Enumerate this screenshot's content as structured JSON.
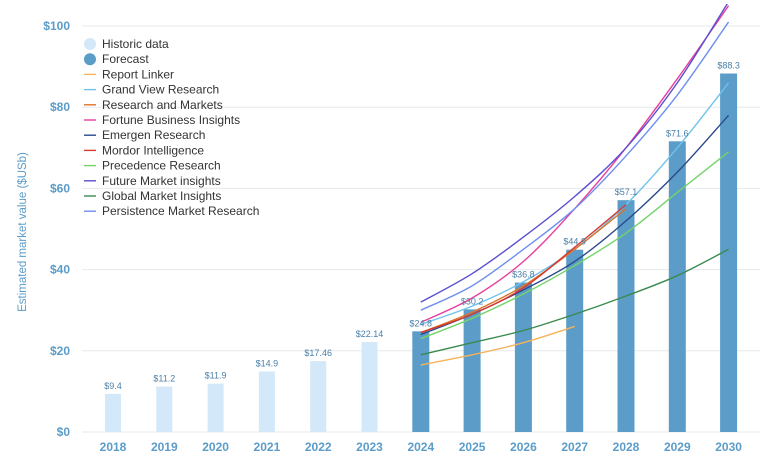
{
  "chart_data": {
    "type": "bar",
    "title": "",
    "xlabel": "",
    "ylabel": "Estimated market value ($USb)",
    "ylim": [
      0,
      100
    ],
    "yticks": [
      0,
      20,
      40,
      60,
      80,
      100
    ],
    "ytick_labels": [
      "$0",
      "$20",
      "$40",
      "$60",
      "$80",
      "$100"
    ],
    "categories": [
      "2018",
      "2019",
      "2020",
      "2021",
      "2022",
      "2023",
      "2024",
      "2025",
      "2026",
      "2027",
      "2028",
      "2029",
      "2030"
    ],
    "bars": {
      "values": [
        9.4,
        11.2,
        11.9,
        14.9,
        17.46,
        22.14,
        24.8,
        30.2,
        36.8,
        44.9,
        57.1,
        71.6,
        88.3
      ],
      "labels": [
        "$9.4",
        "$11.2",
        "$11.9",
        "$14.9",
        "$17.46",
        "$22.14",
        "$24.8",
        "$30.2",
        "$36.8",
        "$44.9",
        "$57.1",
        "$71.6",
        "$88.3"
      ],
      "kind": [
        "historic",
        "historic",
        "historic",
        "historic",
        "historic",
        "historic",
        "forecast",
        "forecast",
        "forecast",
        "forecast",
        "forecast",
        "forecast",
        "forecast"
      ]
    },
    "legend_position": "top-left",
    "legend_markers": [
      {
        "name": "Historic data",
        "color": "#d3e8f8"
      },
      {
        "name": "Forecast",
        "color": "#5b9cc8"
      }
    ],
    "series": [
      {
        "name": "Report Linker",
        "color": "#f5b35a",
        "x": [
          "2024",
          "2025",
          "2026",
          "2027"
        ],
        "values": [
          16.5,
          19.0,
          22.0,
          26.0
        ]
      },
      {
        "name": "Grand View Research",
        "color": "#6fc3ea",
        "x": [
          "2024",
          "2025",
          "2026",
          "2027",
          "2028",
          "2029",
          "2030"
        ],
        "values": [
          26.5,
          31.0,
          37.0,
          45.0,
          56.0,
          70.0,
          86.0
        ]
      },
      {
        "name": "Research and Markets",
        "color": "#e0742a",
        "x": [
          "2024",
          "2025",
          "2026",
          "2027",
          "2028"
        ],
        "values": [
          24.5,
          29.5,
          36.0,
          45.0,
          55.0
        ]
      },
      {
        "name": "Fortune Business Insights",
        "color": "#e83e9c",
        "x": [
          "2024",
          "2025",
          "2026",
          "2027",
          "2028",
          "2029",
          "2030"
        ],
        "values": [
          27.0,
          33.0,
          42.0,
          55.0,
          70.0,
          87.0,
          105.0
        ]
      },
      {
        "name": "Emergen Research",
        "color": "#2b4a8c",
        "x": [
          "2024",
          "2025",
          "2026",
          "2027",
          "2028",
          "2029",
          "2030"
        ],
        "values": [
          24.0,
          29.0,
          35.0,
          42.0,
          52.0,
          64.0,
          78.0
        ]
      },
      {
        "name": "Mordor Intelligence",
        "color": "#d53a32",
        "x": [
          "2024",
          "2025",
          "2026",
          "2027",
          "2028"
        ],
        "values": [
          24.5,
          29.0,
          35.5,
          45.5,
          56.0
        ]
      },
      {
        "name": "Precedence Research",
        "color": "#74d46a",
        "x": [
          "2024",
          "2025",
          "2026",
          "2027",
          "2028",
          "2029",
          "2030"
        ],
        "values": [
          23.0,
          28.0,
          34.0,
          41.0,
          49.0,
          59.0,
          69.0
        ]
      },
      {
        "name": "Future Market insights",
        "color": "#5a4fcf",
        "x": [
          "2024",
          "2025",
          "2026",
          "2027",
          "2028",
          "2029",
          "2030"
        ],
        "values": [
          32.0,
          39.0,
          48.0,
          58.0,
          70.0,
          86.0,
          106.0
        ]
      },
      {
        "name": "Global Market Insights",
        "color": "#3a8a4e",
        "x": [
          "2024",
          "2025",
          "2026",
          "2027",
          "2028",
          "2029",
          "2030"
        ],
        "values": [
          19.0,
          22.0,
          25.0,
          29.0,
          33.5,
          38.5,
          45.0
        ]
      },
      {
        "name": "Persistence Market Research",
        "color": "#6e8ff0",
        "x": [
          "2024",
          "2025",
          "2026",
          "2027",
          "2028",
          "2029",
          "2030"
        ],
        "values": [
          30.0,
          36.0,
          45.0,
          55.0,
          68.0,
          83.0,
          101.0
        ]
      }
    ]
  }
}
